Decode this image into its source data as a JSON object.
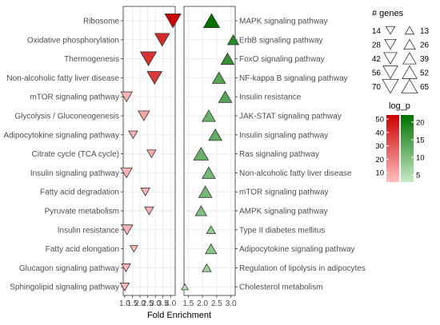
{
  "chart_data": [
    {
      "type": "scatter",
      "marker": "triangle-down",
      "xlabel": "Fold Enrichment",
      "xlim": [
        0.9,
        4.3
      ],
      "xticks": [
        1.0,
        1.5,
        2.0,
        2.5,
        3.0,
        3.5,
        4.0
      ],
      "xtick_labels": [
        "1.0",
        "1.5",
        "2.0",
        "2.5",
        "3.0",
        "3.5",
        "4.0"
      ],
      "grid": true,
      "color_scale": {
        "low": "#ffc0c0",
        "high": "#cc0000"
      },
      "series": [
        {
          "label": "Ribosome",
          "x": 4.15,
          "genes": 70,
          "log_p": 52
        },
        {
          "label": "Oxidative phosphorylation",
          "x": 3.45,
          "genes": 56,
          "log_p": 42
        },
        {
          "label": "Thermogenesis",
          "x": 2.55,
          "genes": 70,
          "log_p": 40
        },
        {
          "label": "Non-alcoholic fatty liver disease",
          "x": 2.95,
          "genes": 56,
          "log_p": 38
        },
        {
          "label": "mTOR signaling pathway",
          "x": 1.12,
          "genes": 28,
          "log_p": 6
        },
        {
          "label": "Glycolysis / Gluconeogenesis",
          "x": 2.25,
          "genes": 28,
          "log_p": 10
        },
        {
          "label": "Adipocytokine signaling pathway",
          "x": 1.55,
          "genes": 14,
          "log_p": 7
        },
        {
          "label": "Citrate cycle (TCA cycle)",
          "x": 2.75,
          "genes": 14,
          "log_p": 8
        },
        {
          "label": "Insulin signaling pathway",
          "x": 1.12,
          "genes": 28,
          "log_p": 6
        },
        {
          "label": "Fatty acid degradation",
          "x": 2.35,
          "genes": 14,
          "log_p": 7
        },
        {
          "label": "Pyruvate metabolism",
          "x": 2.6,
          "genes": 14,
          "log_p": 7
        },
        {
          "label": "Insulin resistance",
          "x": 1.15,
          "genes": 28,
          "log_p": 6
        },
        {
          "label": "Fatty acid elongation",
          "x": 1.6,
          "genes": 8,
          "log_p": 5
        },
        {
          "label": "Glucagon signaling pathway",
          "x": 1.08,
          "genes": 14,
          "log_p": 5
        },
        {
          "label": "Sphingolipid signaling pathway",
          "x": 1.0,
          "genes": 14,
          "log_p": 5
        }
      ]
    },
    {
      "type": "scatter",
      "marker": "triangle-up",
      "xlim": [
        1.35,
        3.15
      ],
      "xticks": [
        1.5,
        2.0,
        2.5,
        3.0
      ],
      "xtick_labels": [
        "1.5",
        "2.0",
        "2.5",
        "3.0"
      ],
      "grid": true,
      "color_scale": {
        "low": "#c8ecc8",
        "high": "#007000"
      },
      "series": [
        {
          "label": "MAPK signaling pathway",
          "x": 2.32,
          "genes": 65,
          "log_p": 22
        },
        {
          "label": "ErbB signaling pathway",
          "x": 3.08,
          "genes": 26,
          "log_p": 18
        },
        {
          "label": "FoxO signaling pathway",
          "x": 2.88,
          "genes": 39,
          "log_p": 17
        },
        {
          "label": "NF-kappa B signaling pathway",
          "x": 2.58,
          "genes": 39,
          "log_p": 14
        },
        {
          "label": "Insulin resistance",
          "x": 2.8,
          "genes": 39,
          "log_p": 14
        },
        {
          "label": "JAK-STAT signaling pathway",
          "x": 2.22,
          "genes": 39,
          "log_p": 12
        },
        {
          "label": "Insulin signaling pathway",
          "x": 2.45,
          "genes": 39,
          "log_p": 13
        },
        {
          "label": "Ras signaling pathway",
          "x": 1.95,
          "genes": 52,
          "log_p": 12
        },
        {
          "label": "Non-alcoholic fatty liver disease",
          "x": 2.22,
          "genes": 39,
          "log_p": 11
        },
        {
          "label": "mTOR signaling pathway",
          "x": 2.1,
          "genes": 39,
          "log_p": 11
        },
        {
          "label": "AMPK signaling pathway",
          "x": 1.95,
          "genes": 26,
          "log_p": 10
        },
        {
          "label": "Type II diabetes mellitus",
          "x": 2.3,
          "genes": 13,
          "log_p": 8
        },
        {
          "label": "Adipocytokine signaling pathway",
          "x": 2.3,
          "genes": 26,
          "log_p": 9
        },
        {
          "label": "Regulation of lipolysis in adipocytes",
          "x": 2.15,
          "genes": 13,
          "log_p": 7
        },
        {
          "label": "Cholesterol metabolism",
          "x": 1.38,
          "genes": 5,
          "log_p": 4
        }
      ]
    }
  ],
  "legend": {
    "genes_title": "# genes",
    "down_sizes": [
      {
        "label": "14",
        "value": 14
      },
      {
        "label": "28",
        "value": 28
      },
      {
        "label": "42",
        "value": 42
      },
      {
        "label": "56",
        "value": 56
      },
      {
        "label": "70",
        "value": 70
      }
    ],
    "up_sizes": [
      {
        "label": "13",
        "value": 13
      },
      {
        "label": "26",
        "value": 26
      },
      {
        "label": "39",
        "value": 39
      },
      {
        "label": "52",
        "value": 52
      },
      {
        "label": "65",
        "value": 65
      }
    ],
    "logp_title": "log_p",
    "red_ticks": [
      {
        "label": "50",
        "value": 50
      },
      {
        "label": "40",
        "value": 40
      },
      {
        "label": "30",
        "value": 30
      },
      {
        "label": "20",
        "value": 20
      },
      {
        "label": "10",
        "value": 10
      }
    ],
    "red_range": [
      3,
      53
    ],
    "green_ticks": [
      {
        "label": "20",
        "value": 20
      },
      {
        "label": "15",
        "value": 15
      },
      {
        "label": "10",
        "value": 10
      },
      {
        "label": "5",
        "value": 5
      }
    ],
    "green_range": [
      3,
      22
    ]
  }
}
